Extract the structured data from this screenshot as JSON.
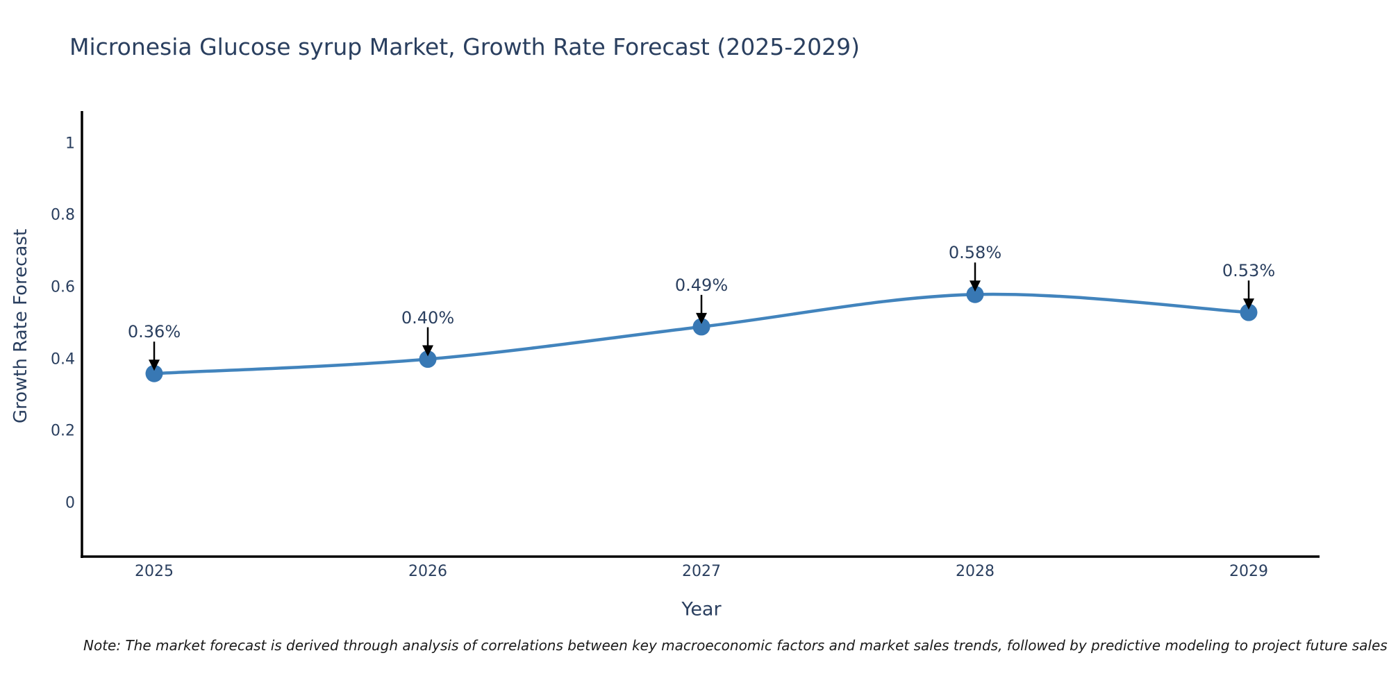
{
  "title": "Micronesia Glucose syrup Market, Growth Rate Forecast (2025-2029)",
  "footnote": "Note: The market forecast is derived through analysis of correlations between key macroeconomic factors and market sales trends, followed by predictive modeling to project future sales",
  "chart_data": {
    "type": "line",
    "title": "Micronesia Glucose syrup Market, Growth Rate Forecast (2025-2029)",
    "xlabel": "Year",
    "ylabel": "Growth Rate Forecast",
    "categories": [
      "2025",
      "2026",
      "2027",
      "2028",
      "2029"
    ],
    "series": [
      {
        "name": "Growth Rate Forecast",
        "values": [
          0.36,
          0.4,
          0.49,
          0.58,
          0.53
        ]
      }
    ],
    "point_labels": [
      "0.36%",
      "0.40%",
      "0.49%",
      "0.58%",
      "0.53%"
    ],
    "yticks": [
      0,
      0.2,
      0.4,
      0.6,
      0.8,
      1
    ],
    "ytick_labels": [
      "0",
      "0.2",
      "0.4",
      "0.6",
      "0.8",
      "1"
    ],
    "ylim": [
      -0.149,
      1.09
    ],
    "grid": false,
    "legend_position": "none",
    "line_shape": "spline",
    "annotations_have_arrows": true,
    "colors": {
      "line": "#4284bd",
      "marker": "#3878b4",
      "axis": "#000000",
      "text": "#2a3f5f",
      "arrow": "#000000",
      "background": "#ffffff"
    }
  }
}
